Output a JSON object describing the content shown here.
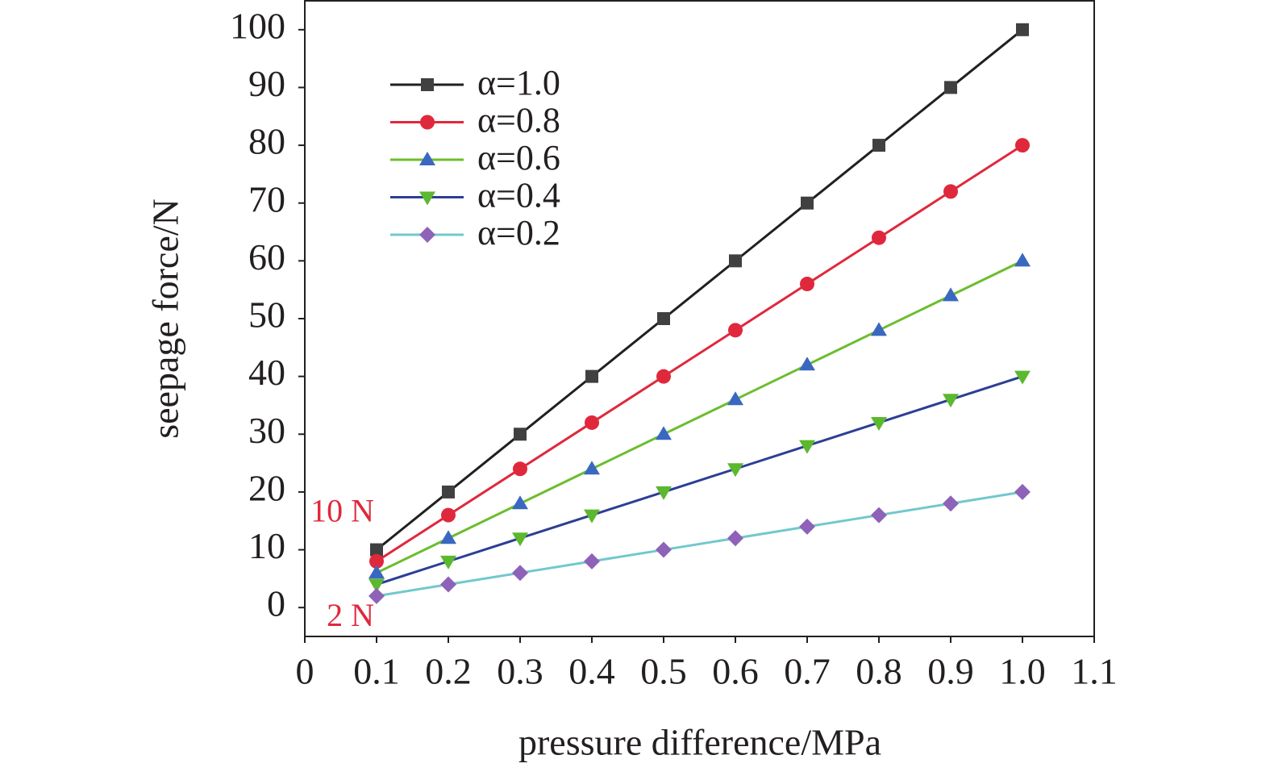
{
  "chart_data": {
    "type": "line",
    "x_label": "pressure difference/MPa",
    "y_label": "seepage force/N",
    "x": [
      0.1,
      0.2,
      0.3,
      0.4,
      0.5,
      0.6,
      0.7,
      0.8,
      0.9,
      1.0
    ],
    "series": [
      {
        "name": "α=1.0",
        "color": "#231f20",
        "marker_color": "#404040",
        "marker": "square",
        "values": [
          10,
          20,
          30,
          40,
          50,
          60,
          70,
          80,
          90,
          100
        ]
      },
      {
        "name": "α=0.8",
        "color": "#e0283c",
        "marker_color": "#e0283c",
        "marker": "circle",
        "values": [
          8,
          16,
          24,
          32,
          40,
          48,
          56,
          64,
          72,
          80
        ]
      },
      {
        "name": "α=0.6",
        "color": "#6cbd2e",
        "marker_color": "#3a68c0",
        "marker": "triangle-up",
        "values": [
          6,
          12,
          18,
          24,
          30,
          36,
          42,
          48,
          54,
          60
        ]
      },
      {
        "name": "α=0.4",
        "color": "#2b3f94",
        "marker_color": "#5cb82e",
        "marker": "triangle-down",
        "values": [
          4,
          8,
          12,
          16,
          20,
          24,
          28,
          32,
          36,
          40
        ]
      },
      {
        "name": "α=0.2",
        "color": "#72c8cc",
        "marker_color": "#8e62b8",
        "marker": "diamond",
        "values": [
          2,
          4,
          6,
          8,
          10,
          12,
          14,
          16,
          18,
          20
        ]
      }
    ],
    "xlim": [
      0,
      1.1
    ],
    "ylim": [
      -5,
      105
    ],
    "xticks": [
      0,
      0.1,
      0.2,
      0.3,
      0.4,
      0.5,
      0.6,
      0.7,
      0.8,
      0.9,
      {
        "value": 1,
        "label": "1.0"
      },
      1.1
    ],
    "yticks": [
      0,
      10,
      20,
      30,
      40,
      50,
      60,
      70,
      80,
      90,
      100
    ],
    "legend": "upper left",
    "grid": false,
    "annotations": [
      {
        "text": "10 N",
        "x": 0.1,
        "y": 10,
        "color": "#e0283c"
      },
      {
        "text": "2 N",
        "x": 0.1,
        "y": 2,
        "color": "#e0283c"
      }
    ]
  }
}
